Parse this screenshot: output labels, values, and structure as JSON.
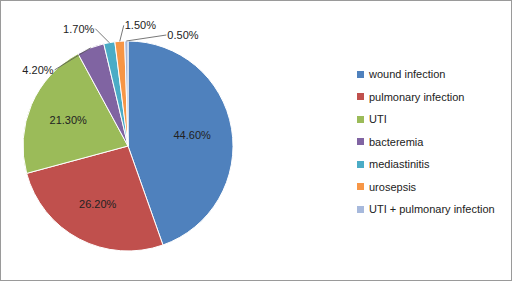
{
  "chart_data": {
    "type": "pie",
    "categories": [
      "wound infection",
      "pulmonary infection",
      "UTI",
      "bacteremia",
      "mediastinitis",
      "urosepsis",
      "UTI + pulmonary infection"
    ],
    "values": [
      44.6,
      26.2,
      21.3,
      4.2,
      1.7,
      1.5,
      0.5
    ],
    "value_labels": [
      "44.60%",
      "26.20%",
      "21.30%",
      "4.20%",
      "1.70%",
      "1.50%",
      "0.50%"
    ],
    "colors": [
      "#4f81bd",
      "#c0504d",
      "#9bbb59",
      "#8064a2",
      "#4bacc6",
      "#f79646",
      "#a7b9dc"
    ],
    "data_labels": true,
    "legend": "right"
  }
}
